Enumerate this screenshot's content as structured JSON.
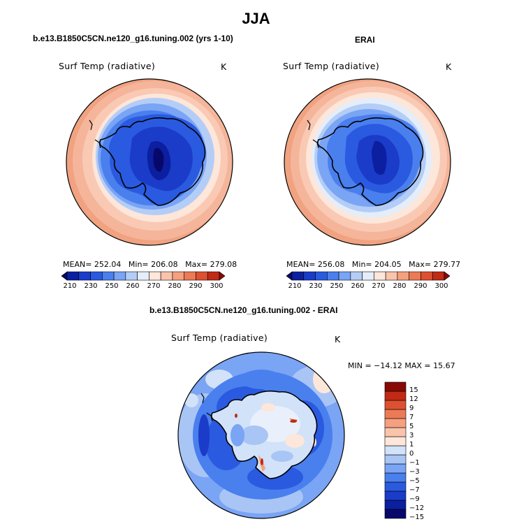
{
  "title": "JJA",
  "panels": {
    "model": {
      "title": "b.e13.B1850C5CN.ne120_g16.tuning.002 (yrs 1-10)",
      "variable": "Surf Temp (radiative)",
      "units": "K",
      "mean_label": "MEAN= 252.04",
      "min_label": "Min= 206.08",
      "max_label": "Max= 279.08"
    },
    "obs": {
      "title": "ERAI",
      "variable": "Surf Temp (radiative)",
      "units": "K",
      "mean_label": "MEAN= 256.08",
      "min_label": "Min= 204.05",
      "max_label": "Max= 279.77"
    },
    "diff": {
      "title": "b.e13.B1850C5CN.ne120_g16.tuning.002 - ERAI",
      "variable": "Surf Temp (radiative)",
      "units": "K",
      "minmax_label": "MIN = −14.12 MAX =  15.67"
    }
  },
  "colorbar_abs": {
    "colors": [
      "#08086b",
      "#0b1fa0",
      "#1b3cc8",
      "#2a5ae0",
      "#4a7fee",
      "#7aa4f4",
      "#b4cdf7",
      "#e4eefa",
      "#fde6da",
      "#f9c4ab",
      "#f5a07f",
      "#ec7a56",
      "#de5130",
      "#c12a15",
      "#870a05"
    ],
    "tick_labels": [
      "210",
      "230",
      "250",
      "260",
      "270",
      "280",
      "290",
      "300"
    ]
  },
  "colorbar_diff": {
    "colors": [
      "#08086b",
      "#0b1fa0",
      "#1b3cc8",
      "#2a5ae0",
      "#4a7fee",
      "#7aa4f4",
      "#a9c5f5",
      "#d2e2f8",
      "#fde6da",
      "#f9c4ab",
      "#f5a07f",
      "#ec7a56",
      "#de5130",
      "#c12a15",
      "#870a05"
    ],
    "tick_labels": [
      "15",
      "12",
      "9",
      "7",
      "5",
      "3",
      "1",
      "0",
      "−1",
      "−3",
      "−5",
      "−7",
      "−9",
      "−12",
      "−15"
    ]
  }
}
